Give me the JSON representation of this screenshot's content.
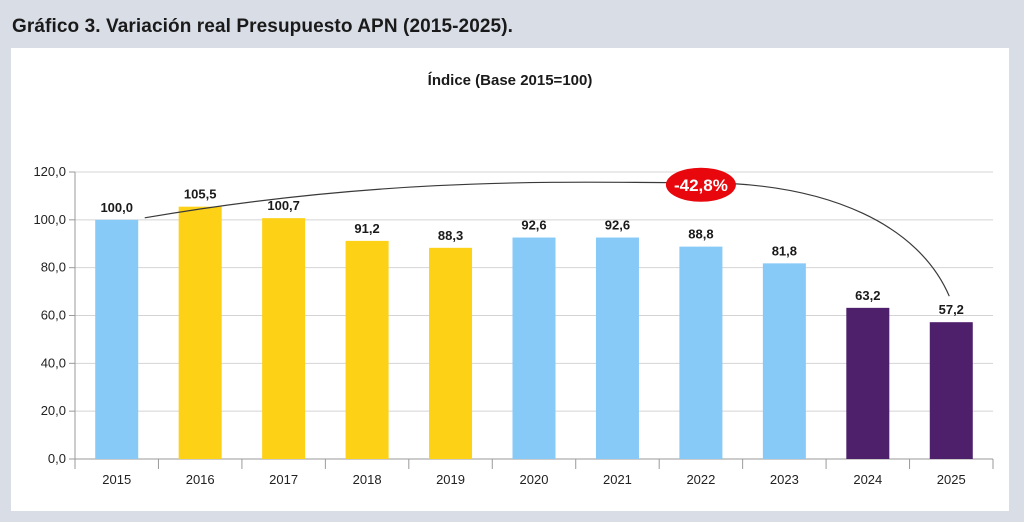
{
  "figure": {
    "heading": "Gráfico 3. Variación real Presupuesto APN (2015-2025)."
  },
  "chart_data": {
    "type": "bar",
    "title": "Índice (Base 2015=100)",
    "xlabel": "",
    "ylabel": "",
    "categories": [
      "2015",
      "2016",
      "2017",
      "2018",
      "2019",
      "2020",
      "2021",
      "2022",
      "2023",
      "2024",
      "2025"
    ],
    "values": [
      100.0,
      105.5,
      100.7,
      91.2,
      88.3,
      92.6,
      92.6,
      88.8,
      81.8,
      63.2,
      57.2
    ],
    "value_labels": [
      "100,0",
      "105,5",
      "100,7",
      "91,2",
      "88,3",
      "92,6",
      "92,6",
      "88,8",
      "81,8",
      "63,2",
      "57,2"
    ],
    "bar_colors": [
      "#87c9f7",
      "#fcd116",
      "#fcd116",
      "#fcd116",
      "#fcd116",
      "#87c9f7",
      "#87c9f7",
      "#87c9f7",
      "#87c9f7",
      "#4e1f6b",
      "#4e1f6b"
    ],
    "ylim": [
      0,
      120
    ],
    "yticks": [
      0,
      20,
      40,
      60,
      80,
      100,
      120
    ],
    "ytick_labels": [
      "0,0",
      "20,0",
      "40,0",
      "60,0",
      "80,0",
      "100,0",
      "120,0"
    ],
    "grid": true,
    "annotation": {
      "text": "-42,8%",
      "color": "#e8070c",
      "from_category": "2015",
      "to_category": "2025"
    }
  }
}
